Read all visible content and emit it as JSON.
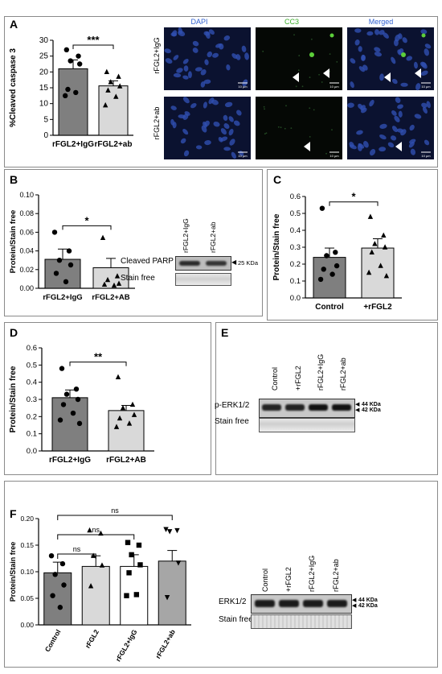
{
  "panels": {
    "A": {
      "letter": "A"
    },
    "B": {
      "letter": "B"
    },
    "C": {
      "letter": "C"
    },
    "D": {
      "letter": "D"
    },
    "E": {
      "letter": "E"
    },
    "F": {
      "letter": "F"
    }
  },
  "micro": {
    "columns": [
      "DAPI",
      "CC3",
      "Merged"
    ],
    "rows": [
      "rFGL2+IgG",
      "rFGL2+ab"
    ],
    "scalebar": "10 µm",
    "colors": {
      "dapi": "#2f4fb0",
      "cc3": "#5ccf3a",
      "bg": "#0b1230"
    }
  },
  "blots": {
    "B": {
      "lanes": [
        "rFGL2+IgG",
        "rFGL2+ab"
      ],
      "rows": [
        "Cleaved PARP",
        "Stain free"
      ],
      "marker": "25 KDa"
    },
    "E": {
      "lanes": [
        "Control",
        "+rFGL2",
        "rFGL2+IgG",
        "rFGL2+ab"
      ],
      "rows": [
        "p-ERK1/2",
        "Stain free"
      ],
      "marker1": "44 KDa",
      "marker2": "42 KDa"
    },
    "F": {
      "lanes": [
        "Control",
        "+rFGL2",
        "rFGL2+IgG",
        "rFGL2+ab"
      ],
      "rows": [
        "ERK1/2",
        "Stain free"
      ],
      "marker1": "44 KDa",
      "marker2": "42 KDa"
    }
  },
  "chart_data": [
    {
      "id": "A",
      "type": "bar",
      "ylabel": "%Cleaved caspase 3",
      "categories": [
        "rFGL2+IgG",
        "rFGL2+ab"
      ],
      "values": [
        21,
        15.6
      ],
      "errors": [
        2.8,
        1.6
      ],
      "points": [
        [
          27,
          25,
          23.5,
          22.5,
          14.5,
          13.5,
          12.5
        ],
        [
          20,
          18.5,
          16.8,
          15.5,
          14.2,
          12.2,
          9.5
        ]
      ],
      "colors": [
        "#7f7f7f",
        "#d9d9d9"
      ],
      "markers": [
        "circle",
        "triangle"
      ],
      "ylim": [
        0,
        30
      ],
      "yticks": [
        0,
        5,
        10,
        15,
        20,
        25,
        30
      ],
      "sig": "***",
      "sig_pair": [
        0,
        1
      ]
    },
    {
      "id": "B",
      "type": "bar",
      "ylabel": "Protein/Stain free",
      "categories": [
        "rFGL2+IgG",
        "rFGL2+AB"
      ],
      "values": [
        0.031,
        0.022
      ],
      "errors": [
        0.011,
        0.01
      ],
      "points": [
        [
          0.06,
          0.04,
          0.03,
          0.025,
          0.016,
          0.007
        ],
        [
          0.054,
          0.013,
          0.009,
          0.005,
          0.004,
          0.003
        ]
      ],
      "colors": [
        "#7f7f7f",
        "#d9d9d9"
      ],
      "markers": [
        "circle",
        "triangle"
      ],
      "ylim": [
        0,
        0.1
      ],
      "yticks": [
        0.0,
        0.02,
        0.04,
        0.06,
        0.08,
        0.1
      ],
      "tickfmt": 2,
      "sig": "*",
      "sig_pair": [
        0,
        1
      ]
    },
    {
      "id": "C",
      "type": "bar",
      "ylabel": "Protein/Stain free",
      "categories": [
        "Control",
        "+rFGL2"
      ],
      "values": [
        0.24,
        0.295
      ],
      "errors": [
        0.055,
        0.055
      ],
      "points": [
        [
          0.53,
          0.27,
          0.25,
          0.19,
          0.17,
          0.14,
          0.11
        ],
        [
          0.48,
          0.37,
          0.32,
          0.3,
          0.27,
          0.19,
          0.15,
          0.13
        ]
      ],
      "colors": [
        "#7f7f7f",
        "#d9d9d9"
      ],
      "markers": [
        "circle",
        "triangle"
      ],
      "ylim": [
        0,
        0.6
      ],
      "yticks": [
        0.0,
        0.1,
        0.2,
        0.3,
        0.4,
        0.5,
        0.6
      ],
      "tickfmt": 1,
      "sig": "*",
      "sig_pair": [
        0,
        1
      ]
    },
    {
      "id": "D",
      "type": "bar",
      "ylabel": "Protein/Stain free",
      "categories": [
        "rFGL2+IgG",
        "rFGL2+AB"
      ],
      "values": [
        0.31,
        0.235
      ],
      "errors": [
        0.045,
        0.03
      ],
      "points": [
        [
          0.48,
          0.36,
          0.33,
          0.3,
          0.27,
          0.22,
          0.18,
          0.16
        ],
        [
          0.43,
          0.27,
          0.25,
          0.21,
          0.19,
          0.16,
          0.14
        ]
      ],
      "colors": [
        "#7f7f7f",
        "#d9d9d9"
      ],
      "markers": [
        "circle",
        "triangle"
      ],
      "ylim": [
        0,
        0.6
      ],
      "yticks": [
        0.0,
        0.1,
        0.2,
        0.3,
        0.4,
        0.5,
        0.6
      ],
      "tickfmt": 1,
      "sig": "**",
      "sig_pair": [
        0,
        1
      ]
    },
    {
      "id": "F",
      "type": "bar",
      "ylabel": "Protein/Stain free",
      "categories": [
        "Control",
        "rFGL2",
        "rFGL2+IgG",
        "rFGL2+ab"
      ],
      "values": [
        0.098,
        0.11,
        0.11,
        0.12
      ],
      "errors": [
        0.02,
        0.02,
        0.022,
        0.02
      ],
      "points": [
        [
          0.13,
          0.115,
          0.095,
          0.075,
          0.055,
          0.033
        ],
        [
          0.178,
          0.172,
          0.13,
          0.112,
          0.073
        ],
        [
          0.155,
          0.15,
          0.132,
          0.113,
          0.098,
          0.057,
          0.055
        ],
        [
          0.18,
          0.178,
          0.176,
          0.117,
          0.052
        ]
      ],
      "colors": [
        "#7f7f7f",
        "#d9d9d9",
        "#ffffff",
        "#a6a6a6"
      ],
      "markers": [
        "circle",
        "triangle",
        "square",
        "triangle-down"
      ],
      "ylim": [
        0,
        0.2
      ],
      "yticks": [
        0.0,
        0.05,
        0.1,
        0.15,
        0.2
      ],
      "tickfmt": 2,
      "rotate_labels": true,
      "sig_brackets": [
        {
          "pair": [
            0,
            1
          ],
          "label": "ns"
        },
        {
          "pair": [
            0,
            2
          ],
          "label": "ns"
        },
        {
          "pair": [
            0,
            3
          ],
          "label": "ns"
        }
      ]
    }
  ]
}
